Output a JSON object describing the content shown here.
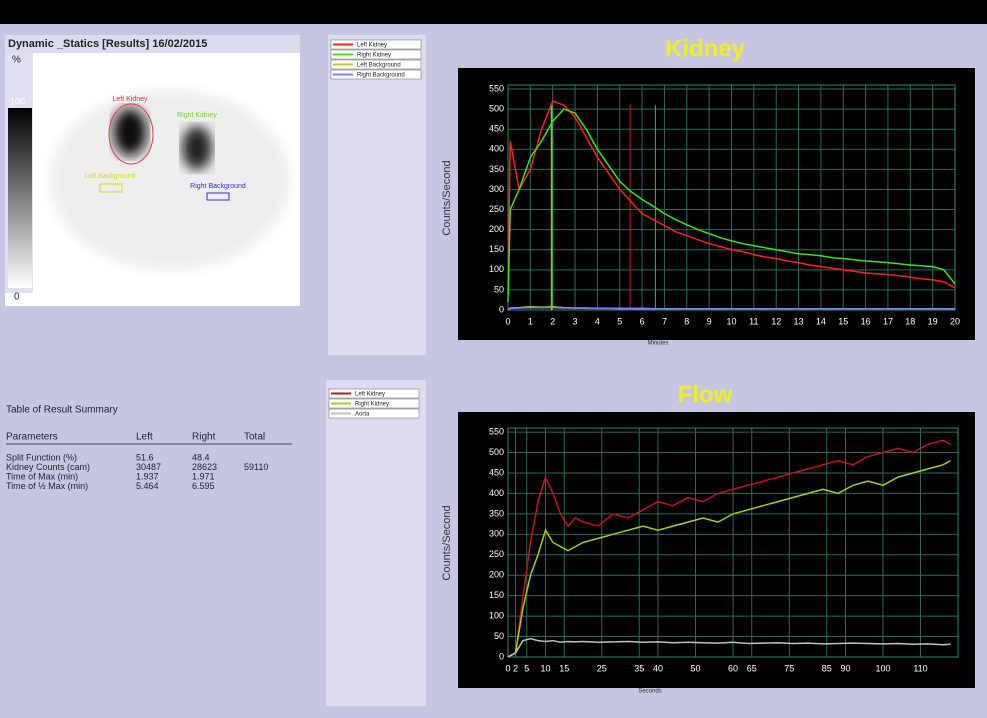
{
  "window": {
    "title": "Dynamic _Statics [Results] 16/02/2015"
  },
  "scan": {
    "scale_unit": "%",
    "scale_max": "100",
    "scale_min": "0",
    "roi_labels": [
      {
        "label": "Left Kidney",
        "color": "#e03030"
      },
      {
        "label": "Right Kidney",
        "color": "#7ac832"
      },
      {
        "label": "Left Background",
        "color": "#d8d820"
      },
      {
        "label": "Right Background",
        "color": "#3030d0"
      }
    ]
  },
  "table": {
    "title": "Table of Result Summary",
    "header": [
      "Parameters",
      "Left",
      "Right",
      "Total"
    ],
    "rows": [
      [
        "Split Function (%)",
        51.6,
        48.4
      ],
      [
        "Kidney Counts (cam)",
        30487,
        28623,
        59110
      ],
      [
        "Time of Max (min)",
        1.937,
        1.971
      ],
      [
        "Time of ½ Max (min)",
        5.464,
        6.595
      ]
    ]
  },
  "chart_data": [
    {
      "type": "line",
      "title": "Kidney",
      "x_label": "Minutes",
      "y_label": "Counts/Second",
      "xlim": [
        0,
        20
      ],
      "xticks": [
        0,
        1,
        2,
        3,
        4,
        5,
        6,
        7,
        8,
        9,
        10,
        11,
        12,
        13,
        14,
        15,
        16,
        17,
        18,
        19,
        20
      ],
      "ylim": [
        0,
        560
      ],
      "yticks": [
        0,
        50,
        100,
        150,
        200,
        250,
        300,
        350,
        400,
        450,
        500,
        550
      ],
      "grid": true,
      "x": [
        0,
        0.1,
        0.5,
        1,
        1.5,
        2,
        2.5,
        3,
        3.5,
        4,
        4.5,
        5,
        5.5,
        6,
        6.5,
        7,
        7.5,
        8,
        8.5,
        9,
        9.5,
        10,
        10.5,
        11,
        11.5,
        12,
        12.5,
        13,
        13.5,
        14,
        14.5,
        15,
        15.5,
        16,
        16.5,
        17,
        17.5,
        18,
        18.5,
        19,
        19.5,
        20
      ],
      "series": [
        {
          "name": "Left Kidney",
          "color": "#ff2020",
          "values": [
            40,
            420,
            300,
            350,
            450,
            520,
            510,
            480,
            430,
            380,
            340,
            300,
            270,
            240,
            225,
            210,
            195,
            185,
            175,
            165,
            158,
            150,
            145,
            138,
            132,
            128,
            122,
            118,
            112,
            108,
            104,
            100,
            96,
            92,
            90,
            88,
            85,
            82,
            78,
            75,
            70,
            55
          ]
        },
        {
          "name": "Right Kidney",
          "color": "#40e020",
          "values": [
            20,
            250,
            300,
            380,
            420,
            470,
            500,
            490,
            450,
            400,
            360,
            320,
            295,
            275,
            258,
            240,
            225,
            212,
            200,
            190,
            180,
            172,
            165,
            160,
            155,
            150,
            145,
            140,
            138,
            135,
            130,
            128,
            125,
            122,
            120,
            118,
            115,
            112,
            110,
            108,
            100,
            65
          ]
        },
        {
          "name": "Left Background",
          "color": "#c8c040",
          "values": [
            0,
            5,
            6,
            8,
            7,
            8,
            6,
            5,
            5,
            4,
            4,
            4,
            4,
            4,
            3,
            3,
            3,
            3,
            3,
            3,
            3,
            3,
            3,
            3,
            3,
            3,
            3,
            3,
            3,
            3,
            3,
            3,
            3,
            3,
            3,
            3,
            3,
            3,
            3,
            3,
            3,
            3
          ]
        },
        {
          "name": "Right Background",
          "color": "#8080ff",
          "values": [
            0,
            4,
            5,
            6,
            6,
            6,
            5,
            5,
            4,
            4,
            4,
            3,
            3,
            3,
            3,
            3,
            3,
            3,
            3,
            3,
            3,
            3,
            3,
            3,
            3,
            3,
            3,
            3,
            3,
            3,
            3,
            3,
            3,
            3,
            3,
            3,
            3,
            3,
            3,
            3,
            3,
            3
          ]
        }
      ],
      "vlines": [
        {
          "x": 1.937,
          "color": "#c8c040"
        },
        {
          "x": 1.971,
          "color": "#40e020"
        },
        {
          "x": 5.464,
          "color": "#c02020"
        },
        {
          "x": 6.595,
          "color": "#40c020"
        }
      ]
    },
    {
      "type": "line",
      "title": "Flow",
      "x_label": "Seconds",
      "y_label": "Counts/Second",
      "xlim": [
        0,
        120
      ],
      "xticks": [
        0,
        2,
        5,
        10,
        15,
        25,
        35,
        40,
        50,
        60,
        65,
        75,
        85,
        90,
        100,
        110
      ],
      "ylim": [
        0,
        560
      ],
      "yticks": [
        0,
        50,
        100,
        150,
        200,
        250,
        300,
        350,
        400,
        450,
        500,
        550
      ],
      "grid": true,
      "x": [
        0,
        2,
        4,
        6,
        8,
        10,
        12,
        14,
        16,
        18,
        20,
        24,
        28,
        32,
        36,
        40,
        44,
        48,
        52,
        56,
        60,
        64,
        68,
        72,
        76,
        80,
        84,
        88,
        92,
        96,
        100,
        104,
        108,
        112,
        116,
        118
      ],
      "series": [
        {
          "name": "Left Kidney",
          "color": "#c01818",
          "values": [
            0,
            10,
            150,
            280,
            380,
            440,
            400,
            350,
            320,
            340,
            330,
            320,
            350,
            340,
            360,
            380,
            370,
            390,
            380,
            400,
            410,
            420,
            430,
            440,
            450,
            460,
            470,
            480,
            470,
            490,
            500,
            510,
            500,
            520,
            530,
            520
          ]
        },
        {
          "name": "Right Kidney",
          "color": "#a0d020",
          "values": [
            0,
            10,
            120,
            200,
            250,
            310,
            280,
            270,
            260,
            270,
            280,
            290,
            300,
            310,
            320,
            310,
            320,
            330,
            340,
            330,
            350,
            360,
            370,
            380,
            390,
            400,
            410,
            400,
            420,
            430,
            420,
            440,
            450,
            460,
            470,
            480
          ]
        },
        {
          "name": "Aorta",
          "color": "#c0c0c0",
          "values": [
            0,
            10,
            40,
            45,
            40,
            38,
            40,
            36,
            38,
            37,
            38,
            36,
            37,
            38,
            36,
            37,
            35,
            36,
            35,
            34,
            36,
            33,
            34,
            35,
            33,
            34,
            32,
            33,
            34,
            33,
            32,
            33,
            31,
            32,
            30,
            31
          ]
        }
      ]
    }
  ]
}
